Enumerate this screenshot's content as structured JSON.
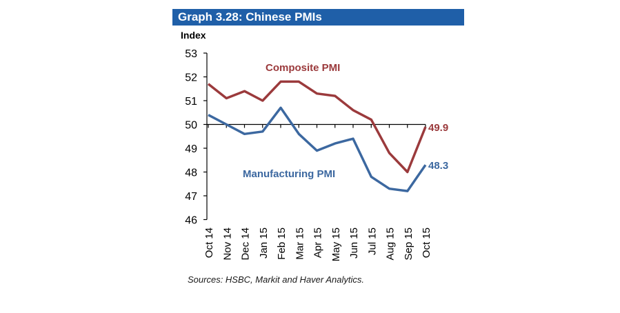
{
  "title": "Graph 3.28: Chinese PMIs",
  "sources": "Sources: HSBC, Markit and Haver Analytics.",
  "chart_data": {
    "type": "line",
    "title": "Graph 3.28: Chinese PMIs",
    "ylabel": "Index",
    "xlabel": "",
    "ylim": [
      46,
      53
    ],
    "yticks": [
      46,
      47,
      48,
      49,
      50,
      51,
      52,
      53
    ],
    "ytick_labels": [
      "46",
      "47",
      "48",
      "49",
      "50",
      "51",
      "52",
      "53"
    ],
    "x_axis_crosses_at": 50,
    "grid": false,
    "categories": [
      "Oct 14",
      "Nov 14",
      "Dec 14",
      "Jan 15",
      "Feb 15",
      "Mar 15",
      "Apr 15",
      "May 15",
      "Jun 15",
      "Jul 15",
      "Aug 15",
      "Sep 15",
      "Oct 15"
    ],
    "series": [
      {
        "name": "Composite PMI",
        "color": "#9b3a3c",
        "values": [
          51.7,
          51.1,
          51.4,
          51.0,
          51.8,
          51.8,
          51.3,
          51.2,
          50.6,
          50.2,
          48.8,
          48.0,
          49.9
        ],
        "end_label": "49.9"
      },
      {
        "name": "Manufacturing PMI",
        "color": "#3c68a0",
        "values": [
          50.4,
          50.0,
          49.6,
          49.7,
          50.7,
          49.6,
          48.9,
          49.2,
          49.4,
          47.8,
          47.3,
          47.2,
          48.3
        ],
        "end_label": "48.3"
      }
    ],
    "legend": "inline labels: Composite PMI top-center, Manufacturing PMI center"
  }
}
